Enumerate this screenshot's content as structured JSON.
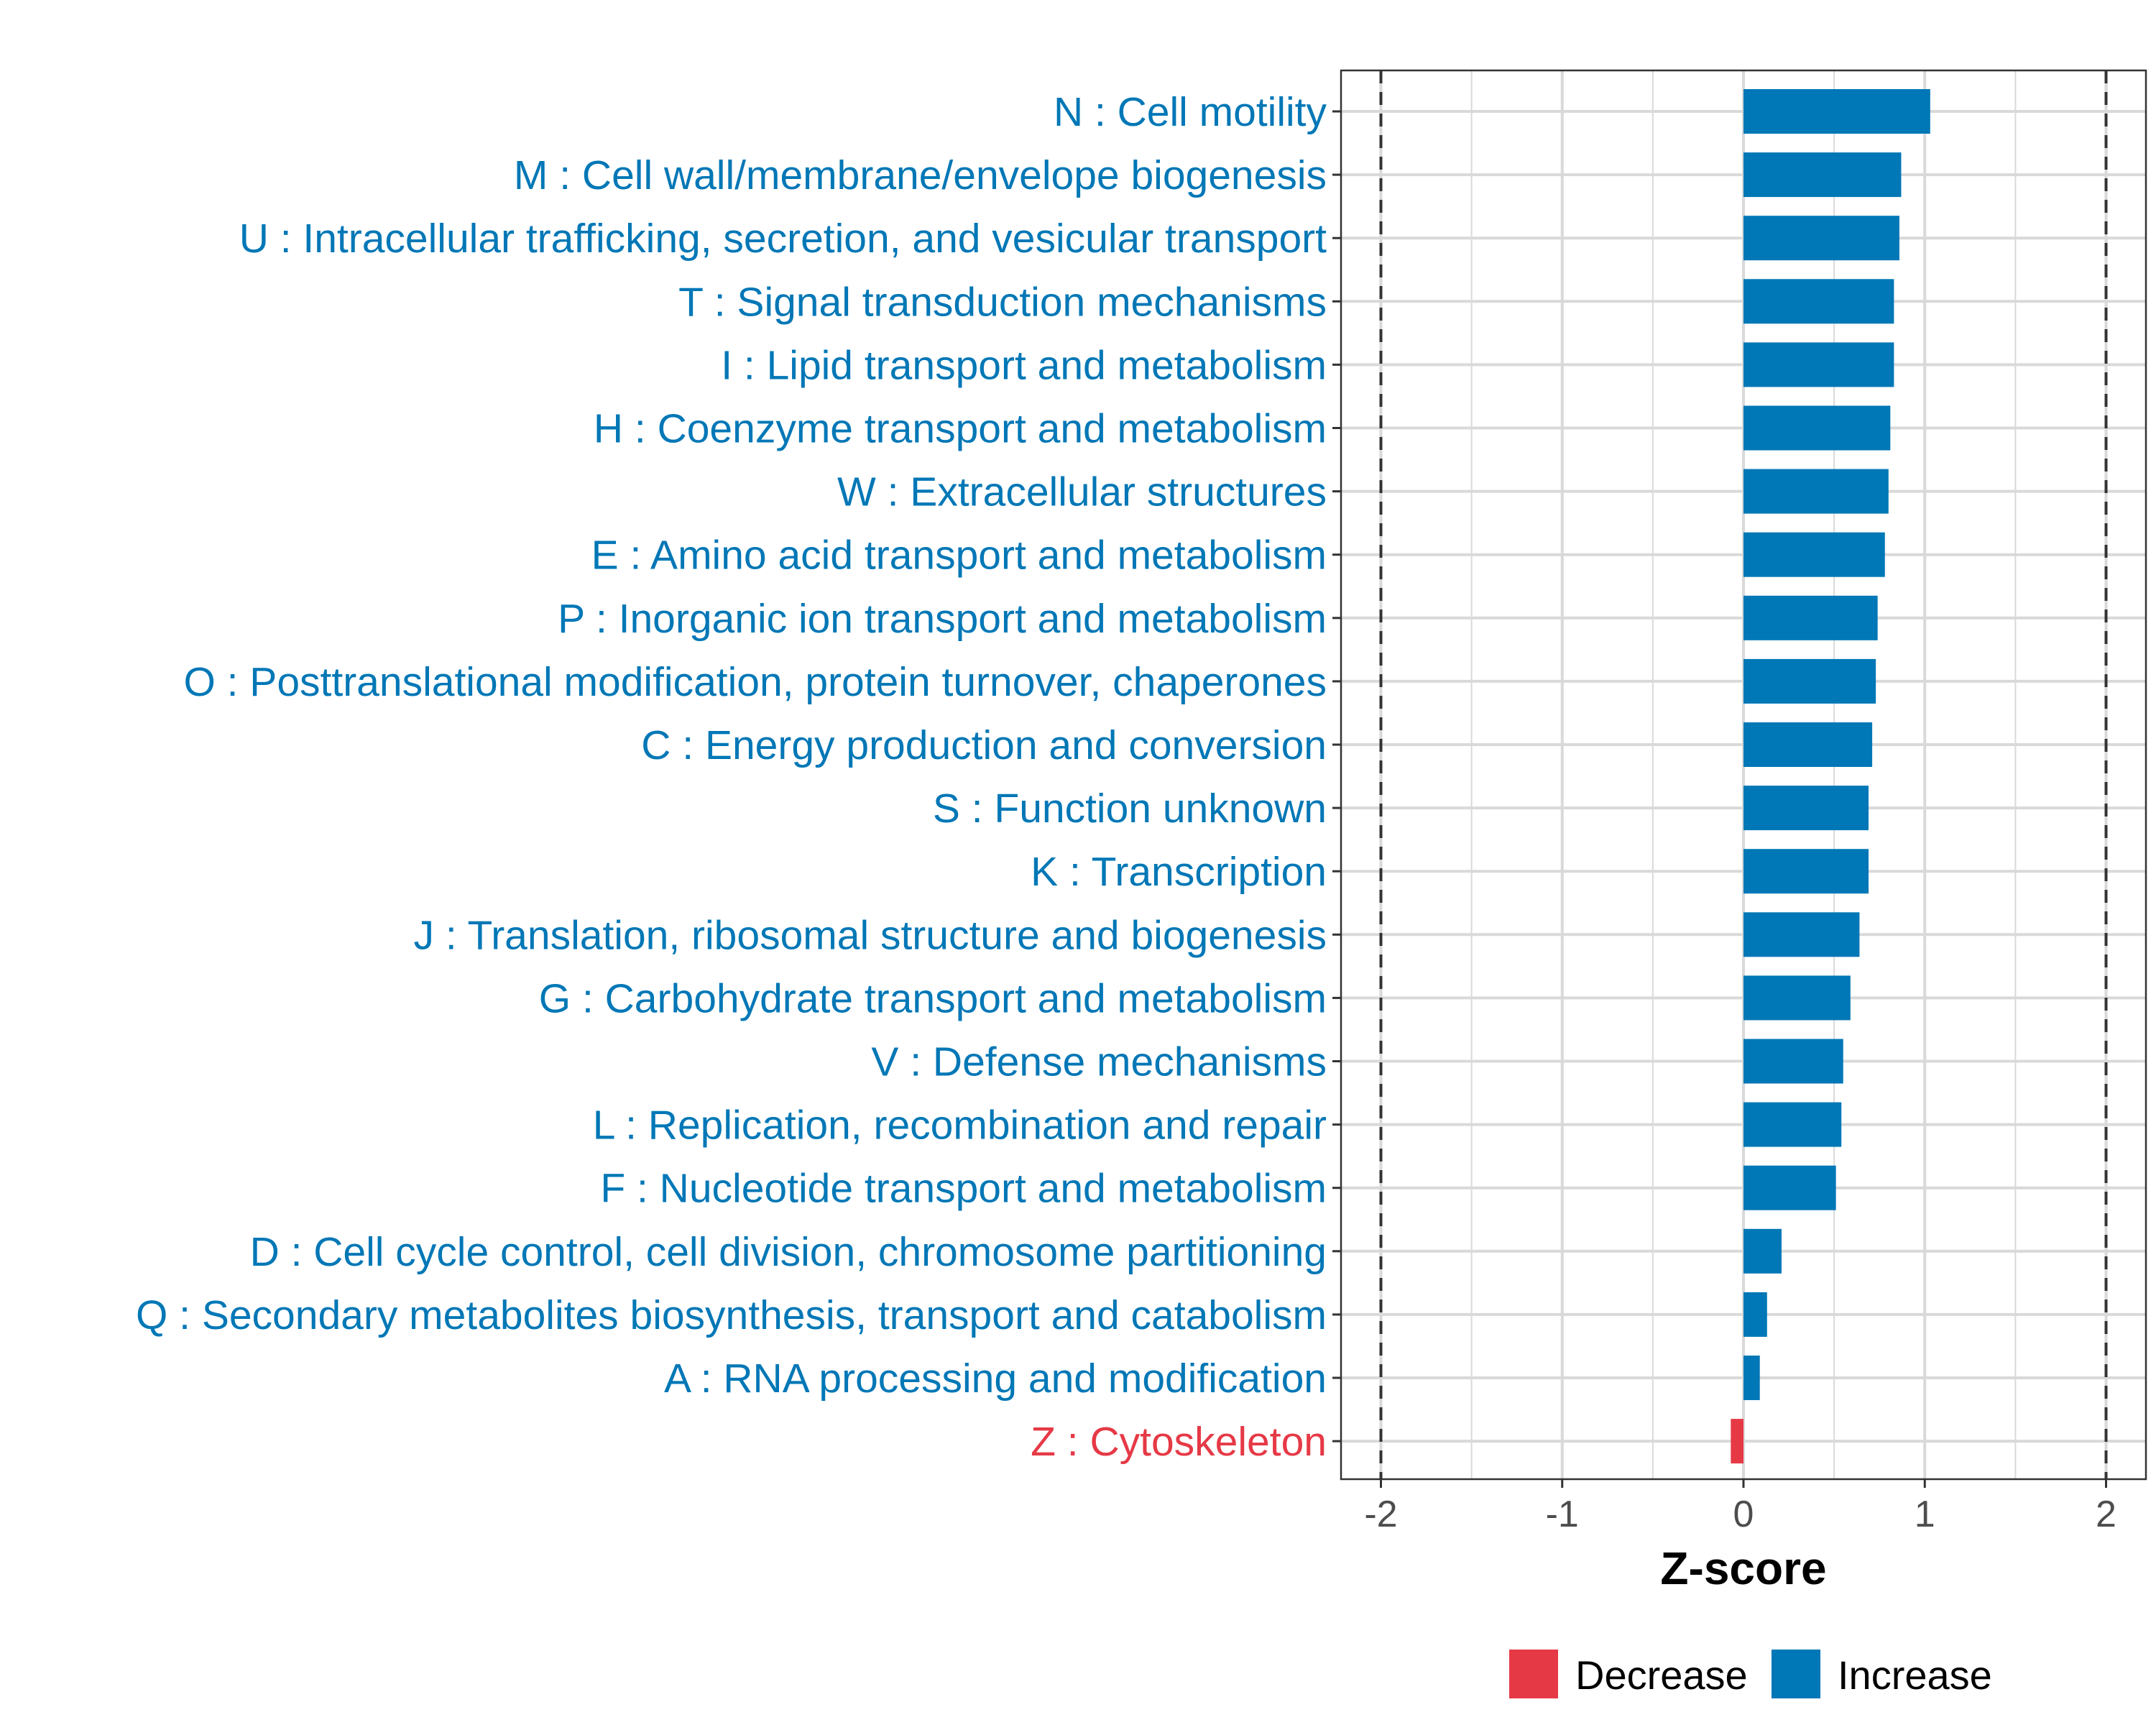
{
  "chart_data": {
    "type": "bar",
    "orientation": "horizontal",
    "title": "",
    "xlabel": "Z-score",
    "ylabel": "",
    "xlim": [
      -2.22,
      2.22
    ],
    "x_ticks": [
      -2,
      -1,
      0,
      1,
      2
    ],
    "x_tick_labels": [
      "-2",
      "-1",
      "0",
      "1",
      "2"
    ],
    "reference_lines": [
      -2,
      2
    ],
    "grid": true,
    "legend": {
      "placement": "bottom",
      "entries": [
        {
          "label": "Decrease",
          "color": "#E63946"
        },
        {
          "label": "Increase",
          "color": "#0077B6"
        }
      ]
    },
    "categories": [
      "N : Cell motility",
      "M : Cell wall/membrane/envelope biogenesis",
      "U : Intracellular trafficking, secretion, and vesicular transport",
      "T : Signal transduction mechanisms",
      "I : Lipid transport and metabolism",
      "H : Coenzyme transport and metabolism",
      "W : Extracellular structures",
      "E : Amino acid transport and metabolism",
      "P : Inorganic ion transport and metabolism",
      "O : Posttranslational modification, protein turnover, chaperones",
      "C : Energy production and conversion",
      "S : Function unknown",
      "K : Transcription",
      "J : Translation, ribosomal structure and biogenesis",
      "G : Carbohydrate transport and metabolism",
      "V : Defense mechanisms",
      "L : Replication, recombination and repair",
      "F : Nucleotide transport and metabolism",
      "D : Cell cycle control, cell division, chromosome partitioning",
      "Q : Secondary metabolites biosynthesis, transport and catabolism",
      "A : RNA processing and modification",
      "Z : Cytoskeleton"
    ],
    "values": [
      1.03,
      0.87,
      0.86,
      0.83,
      0.83,
      0.81,
      0.8,
      0.78,
      0.74,
      0.73,
      0.71,
      0.69,
      0.69,
      0.64,
      0.59,
      0.55,
      0.54,
      0.51,
      0.21,
      0.13,
      0.09,
      -0.07
    ],
    "direction": [
      "Increase",
      "Increase",
      "Increase",
      "Increase",
      "Increase",
      "Increase",
      "Increase",
      "Increase",
      "Increase",
      "Increase",
      "Increase",
      "Increase",
      "Increase",
      "Increase",
      "Increase",
      "Increase",
      "Increase",
      "Increase",
      "Increase",
      "Increase",
      "Increase",
      "Decrease"
    ]
  },
  "colors": {
    "increase": "#0077B6",
    "decrease": "#E63946",
    "grid": "#D9D9D9",
    "axis_text": "#4D4D4D",
    "reference_line": "#333333"
  }
}
